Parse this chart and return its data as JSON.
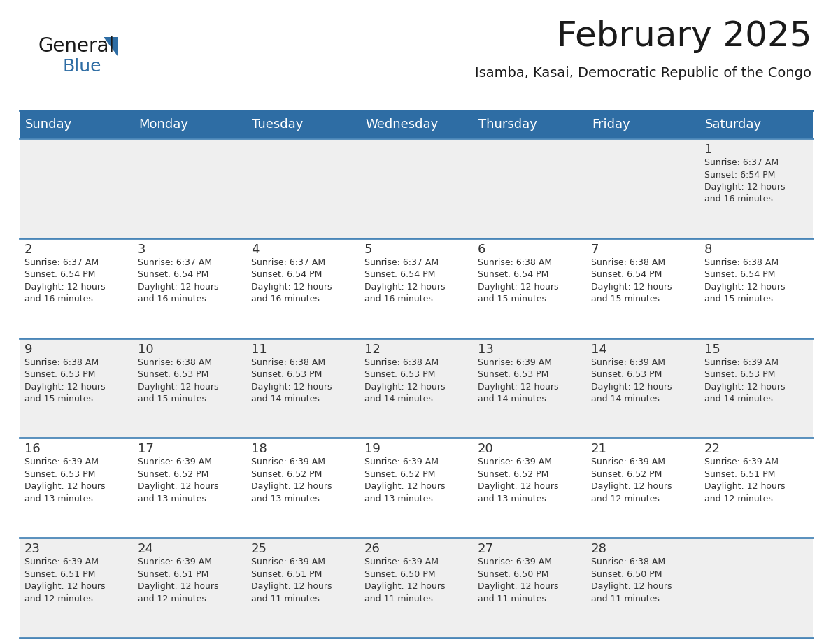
{
  "title": "February 2025",
  "subtitle": "Isamba, Kasai, Democratic Republic of the Congo",
  "header_bg": "#2E6DA4",
  "header_text_color": "#FFFFFF",
  "cell_bg_week1": "#EFEFEF",
  "cell_bg_week2": "#FFFFFF",
  "divider_color": "#2E6DA4",
  "row_divider_color": "#4A86B8",
  "text_color": "#333333",
  "days_of_week": [
    "Sunday",
    "Monday",
    "Tuesday",
    "Wednesday",
    "Thursday",
    "Friday",
    "Saturday"
  ],
  "weeks": [
    [
      {
        "day": "",
        "info": ""
      },
      {
        "day": "",
        "info": ""
      },
      {
        "day": "",
        "info": ""
      },
      {
        "day": "",
        "info": ""
      },
      {
        "day": "",
        "info": ""
      },
      {
        "day": "",
        "info": ""
      },
      {
        "day": "1",
        "info": "Sunrise: 6:37 AM\nSunset: 6:54 PM\nDaylight: 12 hours\nand 16 minutes."
      }
    ],
    [
      {
        "day": "2",
        "info": "Sunrise: 6:37 AM\nSunset: 6:54 PM\nDaylight: 12 hours\nand 16 minutes."
      },
      {
        "day": "3",
        "info": "Sunrise: 6:37 AM\nSunset: 6:54 PM\nDaylight: 12 hours\nand 16 minutes."
      },
      {
        "day": "4",
        "info": "Sunrise: 6:37 AM\nSunset: 6:54 PM\nDaylight: 12 hours\nand 16 minutes."
      },
      {
        "day": "5",
        "info": "Sunrise: 6:37 AM\nSunset: 6:54 PM\nDaylight: 12 hours\nand 16 minutes."
      },
      {
        "day": "6",
        "info": "Sunrise: 6:38 AM\nSunset: 6:54 PM\nDaylight: 12 hours\nand 15 minutes."
      },
      {
        "day": "7",
        "info": "Sunrise: 6:38 AM\nSunset: 6:54 PM\nDaylight: 12 hours\nand 15 minutes."
      },
      {
        "day": "8",
        "info": "Sunrise: 6:38 AM\nSunset: 6:54 PM\nDaylight: 12 hours\nand 15 minutes."
      }
    ],
    [
      {
        "day": "9",
        "info": "Sunrise: 6:38 AM\nSunset: 6:53 PM\nDaylight: 12 hours\nand 15 minutes."
      },
      {
        "day": "10",
        "info": "Sunrise: 6:38 AM\nSunset: 6:53 PM\nDaylight: 12 hours\nand 15 minutes."
      },
      {
        "day": "11",
        "info": "Sunrise: 6:38 AM\nSunset: 6:53 PM\nDaylight: 12 hours\nand 14 minutes."
      },
      {
        "day": "12",
        "info": "Sunrise: 6:38 AM\nSunset: 6:53 PM\nDaylight: 12 hours\nand 14 minutes."
      },
      {
        "day": "13",
        "info": "Sunrise: 6:39 AM\nSunset: 6:53 PM\nDaylight: 12 hours\nand 14 minutes."
      },
      {
        "day": "14",
        "info": "Sunrise: 6:39 AM\nSunset: 6:53 PM\nDaylight: 12 hours\nand 14 minutes."
      },
      {
        "day": "15",
        "info": "Sunrise: 6:39 AM\nSunset: 6:53 PM\nDaylight: 12 hours\nand 14 minutes."
      }
    ],
    [
      {
        "day": "16",
        "info": "Sunrise: 6:39 AM\nSunset: 6:53 PM\nDaylight: 12 hours\nand 13 minutes."
      },
      {
        "day": "17",
        "info": "Sunrise: 6:39 AM\nSunset: 6:52 PM\nDaylight: 12 hours\nand 13 minutes."
      },
      {
        "day": "18",
        "info": "Sunrise: 6:39 AM\nSunset: 6:52 PM\nDaylight: 12 hours\nand 13 minutes."
      },
      {
        "day": "19",
        "info": "Sunrise: 6:39 AM\nSunset: 6:52 PM\nDaylight: 12 hours\nand 13 minutes."
      },
      {
        "day": "20",
        "info": "Sunrise: 6:39 AM\nSunset: 6:52 PM\nDaylight: 12 hours\nand 13 minutes."
      },
      {
        "day": "21",
        "info": "Sunrise: 6:39 AM\nSunset: 6:52 PM\nDaylight: 12 hours\nand 12 minutes."
      },
      {
        "day": "22",
        "info": "Sunrise: 6:39 AM\nSunset: 6:51 PM\nDaylight: 12 hours\nand 12 minutes."
      }
    ],
    [
      {
        "day": "23",
        "info": "Sunrise: 6:39 AM\nSunset: 6:51 PM\nDaylight: 12 hours\nand 12 minutes."
      },
      {
        "day": "24",
        "info": "Sunrise: 6:39 AM\nSunset: 6:51 PM\nDaylight: 12 hours\nand 12 minutes."
      },
      {
        "day": "25",
        "info": "Sunrise: 6:39 AM\nSunset: 6:51 PM\nDaylight: 12 hours\nand 11 minutes."
      },
      {
        "day": "26",
        "info": "Sunrise: 6:39 AM\nSunset: 6:50 PM\nDaylight: 12 hours\nand 11 minutes."
      },
      {
        "day": "27",
        "info": "Sunrise: 6:39 AM\nSunset: 6:50 PM\nDaylight: 12 hours\nand 11 minutes."
      },
      {
        "day": "28",
        "info": "Sunrise: 6:38 AM\nSunset: 6:50 PM\nDaylight: 12 hours\nand 11 minutes."
      },
      {
        "day": "",
        "info": ""
      }
    ]
  ],
  "logo_color_general": "#1a1a1a",
  "logo_color_blue": "#2E6DA4",
  "logo_triangle_color": "#2E6DA4",
  "title_fontsize": 36,
  "subtitle_fontsize": 14,
  "day_header_fontsize": 13,
  "day_num_fontsize": 13,
  "cell_text_fontsize": 9
}
